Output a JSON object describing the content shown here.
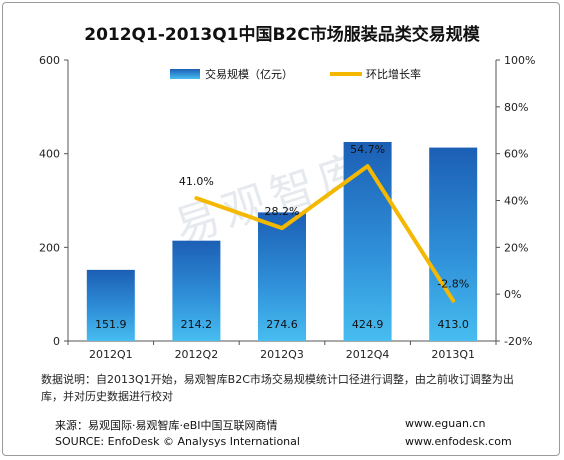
{
  "chart_data": {
    "type": "bar+line",
    "title": "2012Q1-2013Q1中国B2C市场服装品类交易规模",
    "categories": [
      "2012Q1",
      "2012Q2",
      "2012Q3",
      "2012Q4",
      "2013Q1"
    ],
    "series": [
      {
        "name": "交易规模（亿元）",
        "type": "bar",
        "axis": "left",
        "values": [
          151.9,
          214.2,
          274.6,
          424.9,
          413.0
        ],
        "value_labels": [
          "151.9",
          "214.2",
          "274.6",
          "424.9",
          "413.0"
        ],
        "color": "#2f8fd8"
      },
      {
        "name": "环比增长率",
        "type": "line",
        "axis": "right",
        "values": [
          null,
          41.0,
          28.2,
          54.7,
          -2.8
        ],
        "value_labels": [
          "",
          "41.0%",
          "28.2%",
          "54.7%",
          "-2.8%"
        ],
        "color": "#f5b800"
      }
    ],
    "y_left": {
      "min": 0,
      "max": 600,
      "ticks": [
        "0",
        "200",
        "400",
        "600"
      ],
      "tick_values": [
        0,
        200,
        400,
        600
      ]
    },
    "y_right": {
      "min": -20,
      "max": 100,
      "ticks": [
        "-20%",
        "0%",
        "20%",
        "40%",
        "60%",
        "80%",
        "100%"
      ],
      "tick_values": [
        -20,
        0,
        20,
        40,
        60,
        80,
        100
      ]
    },
    "legend_position": "top",
    "grid": false
  },
  "watermark": "易观智库",
  "notes": {
    "line1": "数据说明：自2013Q1开始，易观智库B2C市场交易规模统计口径进行调整，由之前收订调整为出",
    "line2": "库，并对历史数据进行校对"
  },
  "source": {
    "cn": "来源：易观国际·易观智库·eBI中国互联网商情",
    "en": "SOURCE: EnfoDesk © Analysys International",
    "url1": "www.eguan.cn",
    "url2": "www.enfodesk.com"
  }
}
